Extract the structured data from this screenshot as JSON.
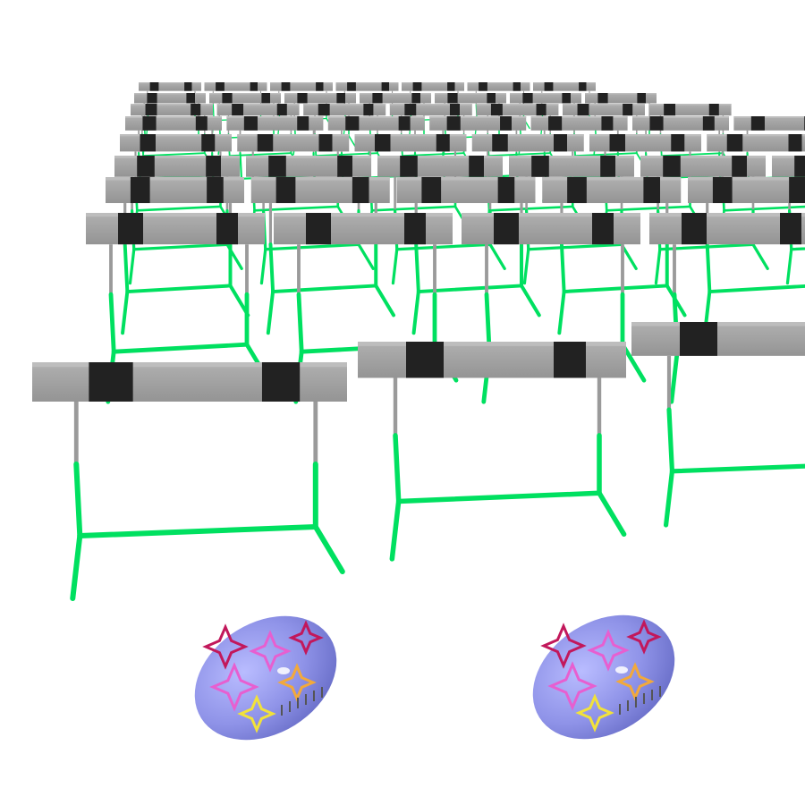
{
  "scene": {
    "background": "#ffffff",
    "hurdle_board_color": "#a0a0a0",
    "hurdle_stripe_color": "#222222",
    "hurdle_frame_color": "#00e060",
    "hurdle_post_color": "#9a9a9a",
    "ball_color": "#8f93e8",
    "ball_pattern_colors": [
      "#c2185b",
      "#e75fd0",
      "#f2a93b",
      "#f2e23a"
    ],
    "objects": {
      "hurdles": "hurdles-in-rows",
      "balls": 2
    }
  }
}
